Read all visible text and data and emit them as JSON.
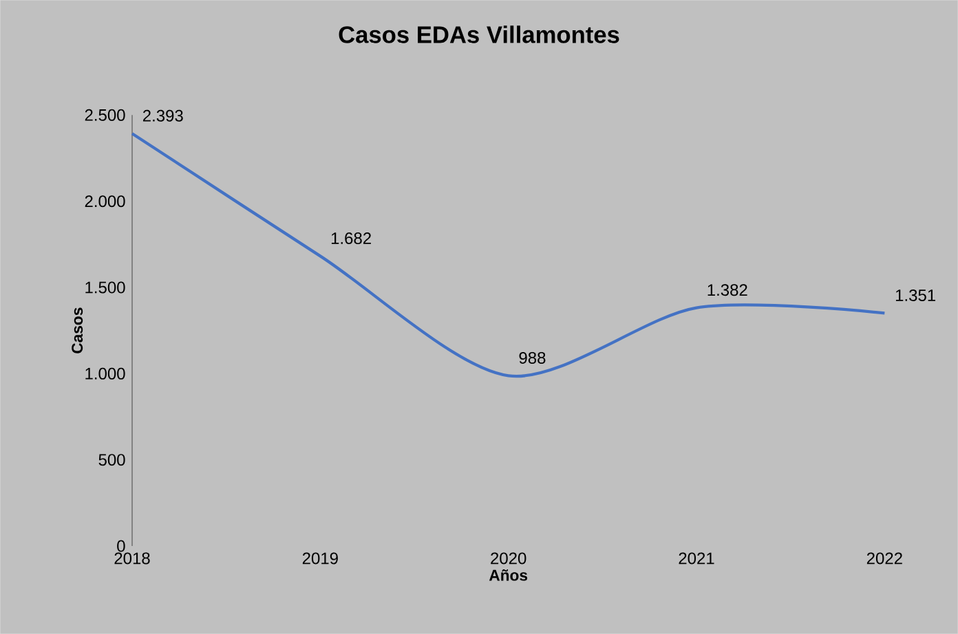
{
  "chart_data": {
    "type": "line",
    "title": "Casos EDAs Villamontes",
    "xlabel": "Años",
    "ylabel": "Casos",
    "x": [
      2018,
      2019,
      2020,
      2021,
      2022
    ],
    "series": [
      {
        "color": "#4472c4",
        "values": [
          2393,
          1682,
          988,
          1382,
          1351
        ],
        "value_labels": [
          "2.393",
          "1.682",
          "988",
          "1.382",
          "1.351"
        ]
      }
    ],
    "xlim": [
      2018,
      2022
    ],
    "xticks": [
      2018,
      2019,
      2020,
      2021,
      2022
    ],
    "ylim": [
      0,
      2500
    ],
    "yticks": [
      0,
      500,
      {
        "value": 1000,
        "label": "1.000"
      },
      {
        "value": 1500,
        "label": "1.500"
      },
      {
        "value": 2000,
        "label": "2.000"
      },
      {
        "value": 2500,
        "label": "2.500"
      }
    ],
    "marker": "none",
    "line_style": "solid"
  }
}
